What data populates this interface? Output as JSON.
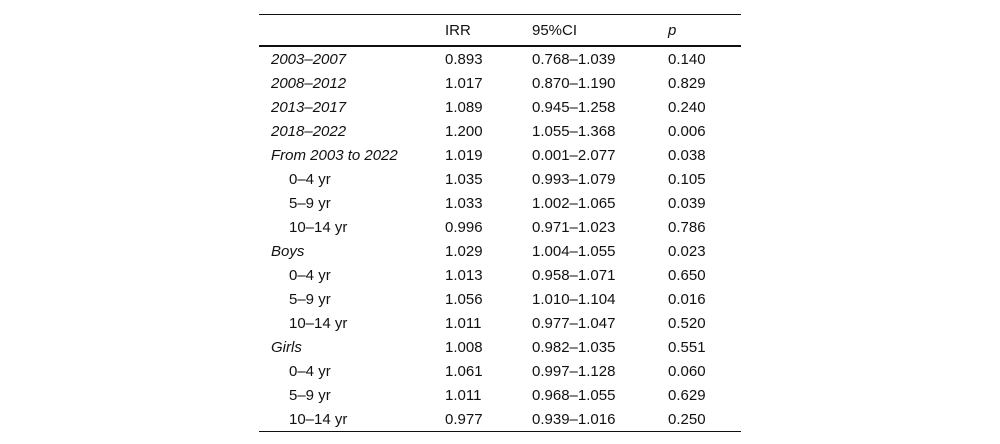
{
  "table": {
    "headers": [
      "",
      "IRR",
      "95%CI",
      "p"
    ],
    "rows": [
      {
        "label": "2003–2007",
        "style": "group",
        "irr": "0.893",
        "ci": "0.768–1.039",
        "p": "0.140"
      },
      {
        "label": "2008–2012",
        "style": "group",
        "irr": "1.017",
        "ci": "0.870–1.190",
        "p": "0.829"
      },
      {
        "label": "2013–2017",
        "style": "group",
        "irr": "1.089",
        "ci": "0.945–1.258",
        "p": "0.240"
      },
      {
        "label": "2018–2022",
        "style": "group",
        "irr": "1.200",
        "ci": "1.055–1.368",
        "p": "0.006"
      },
      {
        "label": "From 2003 to 2022",
        "style": "group",
        "irr": "1.019",
        "ci": "0.001–2.077",
        "p": "0.038"
      },
      {
        "label": "0–4 yr",
        "style": "sub",
        "irr": "1.035",
        "ci": "0.993–1.079",
        "p": "0.105"
      },
      {
        "label": "5–9 yr",
        "style": "sub",
        "irr": "1.033",
        "ci": "1.002–1.065",
        "p": "0.039"
      },
      {
        "label": "10–14 yr",
        "style": "sub",
        "irr": "0.996",
        "ci": "0.971–1.023",
        "p": "0.786"
      },
      {
        "label": "Boys",
        "style": "group",
        "irr": "1.029",
        "ci": "1.004–1.055",
        "p": "0.023"
      },
      {
        "label": "0–4 yr",
        "style": "sub",
        "irr": "1.013",
        "ci": "0.958–1.071",
        "p": "0.650"
      },
      {
        "label": "5–9 yr",
        "style": "sub",
        "irr": "1.056",
        "ci": "1.010–1.104",
        "p": "0.016"
      },
      {
        "label": "10–14 yr",
        "style": "sub",
        "irr": "1.011",
        "ci": "0.977–1.047",
        "p": "0.520"
      },
      {
        "label": "Girls",
        "style": "group",
        "irr": "1.008",
        "ci": "0.982–1.035",
        "p": "0.551"
      },
      {
        "label": "0–4 yr",
        "style": "sub",
        "irr": "1.061",
        "ci": "0.997–1.128",
        "p": "0.060"
      },
      {
        "label": "5–9 yr",
        "style": "sub",
        "irr": "1.011",
        "ci": "0.968–1.055",
        "p": "0.629"
      },
      {
        "label": "10–14 yr",
        "style": "sub",
        "irr": "0.977",
        "ci": "0.939–1.016",
        "p": "0.250"
      }
    ]
  },
  "chart_data": {
    "type": "table",
    "title": "",
    "columns": [
      "",
      "IRR",
      "95%CI",
      "p"
    ],
    "rows": [
      [
        "2003–2007",
        0.893,
        "0.768–1.039",
        0.14
      ],
      [
        "2008–2012",
        1.017,
        "0.870–1.190",
        0.829
      ],
      [
        "2013–2017",
        1.089,
        "0.945–1.258",
        0.24
      ],
      [
        "2018–2022",
        1.2,
        "1.055–1.368",
        0.006
      ],
      [
        "From 2003 to 2022",
        1.019,
        "0.001–2.077",
        0.038
      ],
      [
        "0–4 yr",
        1.035,
        "0.993–1.079",
        0.105
      ],
      [
        "5–9 yr",
        1.033,
        "1.002–1.065",
        0.039
      ],
      [
        "10–14 yr",
        0.996,
        "0.971–1.023",
        0.786
      ],
      [
        "Boys",
        1.029,
        "1.004–1.055",
        0.023
      ],
      [
        "0–4 yr",
        1.013,
        "0.958–1.071",
        0.65
      ],
      [
        "5–9 yr",
        1.056,
        "1.010–1.104",
        0.016
      ],
      [
        "10–14 yr",
        1.011,
        "0.977–1.047",
        0.52
      ],
      [
        "Girls",
        1.008,
        "0.982–1.035",
        0.551
      ],
      [
        "0–4 yr",
        1.061,
        "0.997–1.128",
        0.06
      ],
      [
        "5–9 yr",
        1.011,
        "0.968–1.055",
        0.629
      ],
      [
        "10–14 yr",
        0.977,
        "0.939–1.016",
        0.25
      ]
    ]
  }
}
